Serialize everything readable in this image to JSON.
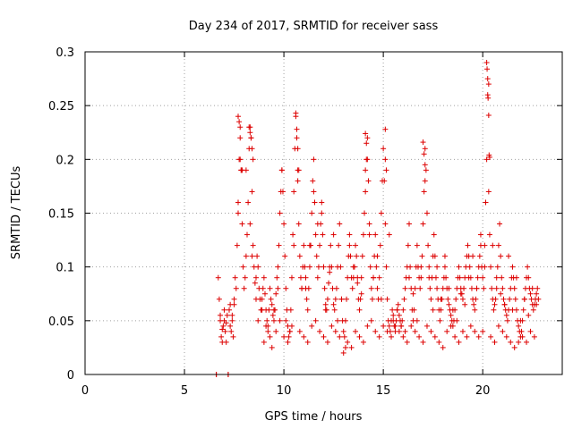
{
  "chart_data": {
    "type": "scatter",
    "title": "Day 234 of 2017, SRMTID for receiver sass",
    "xlabel": "GPS time / hours",
    "ylabel": "SRMTID / TECUs",
    "xlim": [
      0,
      24
    ],
    "ylim": [
      0,
      0.3
    ],
    "xticks": [
      0,
      5,
      10,
      15,
      20
    ],
    "xtick_labels": [
      "0",
      "5",
      "10",
      "15",
      "20"
    ],
    "yticks": [
      0,
      0.05,
      0.1,
      0.15,
      0.2,
      0.25,
      0.3
    ],
    "ytick_labels": [
      "0",
      "0.05",
      "0.1",
      "0.15",
      "0.2",
      "0.25",
      "0.3"
    ],
    "grid": true,
    "marker": "+",
    "color": "#dd0000",
    "series": [
      {
        "name": "SRMTID",
        "x": [
          6.6,
          6.6,
          6.6,
          7.2,
          7.2,
          6.7,
          6.75,
          6.8,
          6.85,
          6.9,
          6.95,
          7.0,
          7.05,
          7.1,
          7.15,
          7.25,
          7.3,
          7.35,
          7.4,
          7.45,
          7.5,
          7.55,
          7.6,
          7.65,
          7.7,
          7.75,
          7.8,
          7.85,
          7.9,
          7.95,
          8.0,
          8.05,
          8.1,
          8.15,
          8.2,
          8.25,
          8.3,
          8.35,
          8.4,
          8.45,
          8.5,
          8.55,
          8.6,
          8.65,
          8.7,
          8.75,
          8.8,
          8.85,
          8.9,
          8.95,
          9.0,
          9.05,
          9.1,
          9.15,
          9.2,
          9.25,
          9.3,
          9.35,
          9.4,
          9.45,
          9.5,
          9.55,
          9.6,
          9.65,
          9.7,
          9.75,
          9.8,
          9.85,
          9.9,
          9.95,
          10.0,
          10.05,
          10.1,
          10.15,
          10.2,
          10.25,
          10.3,
          10.35,
          10.4,
          10.45,
          10.5,
          10.55,
          10.6,
          10.65,
          10.7,
          10.75,
          10.8,
          10.85,
          10.9,
          10.95,
          11.0,
          11.05,
          11.1,
          11.15,
          11.2,
          11.25,
          11.3,
          11.35,
          11.4,
          11.45,
          11.5,
          11.55,
          11.6,
          11.65,
          11.7,
          11.75,
          11.8,
          11.85,
          11.9,
          11.95,
          12.0,
          12.05,
          12.1,
          12.15,
          12.2,
          12.25,
          12.3,
          12.35,
          12.4,
          12.45,
          12.5,
          12.55,
          12.6,
          12.65,
          12.7,
          12.75,
          12.8,
          12.85,
          12.9,
          12.95,
          13.0,
          13.05,
          13.1,
          13.15,
          13.2,
          13.25,
          13.3,
          13.35,
          13.4,
          13.45,
          13.5,
          13.55,
          13.6,
          13.65,
          13.7,
          13.75,
          13.8,
          13.85,
          13.9,
          13.95,
          14.0,
          14.05,
          14.1,
          14.15,
          14.2,
          14.25,
          14.3,
          14.35,
          14.4,
          14.45,
          14.5,
          14.55,
          14.6,
          14.65,
          14.7,
          14.75,
          14.8,
          14.85,
          14.9,
          14.95,
          15.0,
          15.05,
          15.1,
          15.15,
          15.2,
          15.25,
          15.3,
          15.35,
          15.4,
          15.45,
          15.5,
          15.55,
          15.6,
          15.65,
          15.7,
          15.75,
          15.8,
          15.85,
          15.9,
          15.95,
          16.0,
          16.05,
          16.1,
          16.15,
          16.2,
          16.25,
          16.3,
          16.35,
          16.4,
          16.45,
          16.5,
          16.55,
          16.6,
          16.65,
          16.7,
          16.75,
          16.8,
          16.85,
          16.9,
          16.95,
          17.0,
          17.05,
          17.1,
          17.15,
          17.2,
          17.25,
          17.3,
          17.35,
          17.4,
          17.45,
          17.5,
          17.55,
          17.6,
          17.65,
          17.7,
          17.75,
          17.8,
          17.85,
          17.9,
          17.95,
          18.0,
          18.05,
          18.1,
          18.15,
          18.2,
          18.25,
          18.3,
          18.35,
          18.4,
          18.45,
          18.5,
          18.55,
          18.6,
          18.65,
          18.7,
          18.75,
          18.8,
          18.85,
          18.9,
          18.95,
          19.0,
          19.05,
          19.1,
          19.15,
          19.2,
          19.25,
          19.3,
          19.35,
          19.4,
          19.45,
          19.5,
          19.55,
          19.6,
          19.65,
          19.7,
          19.75,
          19.8,
          19.85,
          19.9,
          19.95,
          20.0,
          20.05,
          20.1,
          20.15,
          20.2,
          20.25,
          20.3,
          20.35,
          20.4,
          20.45,
          20.5,
          20.55,
          20.6,
          20.65,
          20.7,
          20.75,
          20.8,
          20.85,
          20.9,
          20.95,
          21.0,
          21.05,
          21.1,
          21.15,
          21.2,
          21.25,
          21.3,
          21.35,
          21.4,
          21.45,
          21.5,
          21.55,
          21.6,
          21.65,
          21.7,
          21.75,
          21.8,
          21.85,
          21.9,
          21.95,
          22.0,
          22.05,
          22.1,
          22.15,
          22.2,
          22.25,
          22.3,
          22.35,
          22.4,
          22.45,
          22.5,
          22.55,
          22.6,
          22.65,
          22.7,
          22.75,
          22.8,
          6.8,
          6.9,
          7.0,
          7.1,
          7.3,
          7.4,
          7.5,
          7.7,
          7.8,
          7.9,
          8.1,
          8.3,
          8.4,
          8.6,
          8.7,
          8.9,
          9.1,
          9.3,
          9.5,
          9.7,
          9.9,
          10.1,
          10.3,
          10.5,
          10.7,
          10.9,
          11.1,
          11.3,
          11.5,
          11.7,
          11.9,
          12.1,
          12.3,
          12.5,
          12.7,
          12.9,
          13.1,
          13.3,
          13.5,
          13.7,
          13.9,
          14.1,
          14.3,
          14.5,
          14.7,
          14.9,
          15.1,
          15.3,
          15.5,
          15.7,
          15.9,
          16.1,
          16.3,
          16.5,
          16.7,
          16.9,
          17.1,
          17.3,
          17.5,
          17.7,
          17.9,
          18.1,
          18.3,
          18.5,
          18.7,
          18.9,
          19.1,
          19.3,
          19.5,
          19.7,
          19.9,
          20.1,
          20.3,
          20.5,
          20.7,
          20.9,
          21.1,
          21.3,
          21.5,
          21.7,
          21.9,
          22.1,
          22.3,
          22.5,
          22.7,
          7.7,
          7.75,
          7.8,
          7.85,
          8.25,
          8.3,
          8.35,
          8.4,
          8.45,
          10.6,
          10.65,
          10.7,
          10.75,
          14.1,
          14.15,
          14.2,
          15.1,
          15.15,
          17.0,
          17.05,
          17.1,
          20.2,
          20.22,
          20.25,
          20.27,
          20.3,
          20.32,
          20.35,
          9.0,
          9.2,
          9.4,
          9.6,
          9.8,
          10.0,
          10.2,
          10.4,
          10.8,
          11.0,
          11.2,
          11.4,
          11.6,
          11.8,
          12.0,
          12.2,
          12.4,
          12.6,
          12.8,
          13.0,
          13.2,
          13.4,
          13.6,
          13.8,
          14.0,
          14.2,
          14.4,
          14.6,
          14.8,
          15.0,
          15.2,
          15.4,
          15.6,
          15.8,
          16.0,
          16.2,
          16.4,
          16.6,
          16.8,
          17.0,
          17.2,
          17.4,
          17.6,
          17.8,
          18.0,
          18.2,
          18.4,
          18.6,
          18.8,
          19.0,
          19.2,
          19.4,
          19.6,
          19.8,
          20.0,
          20.4,
          20.6,
          20.8,
          21.0,
          21.2,
          21.4,
          21.6,
          21.8,
          22.0,
          22.2,
          22.4,
          22.6
        ],
        "y": [
          0.0,
          0.0,
          0.0,
          0.0,
          0.0,
          0.09,
          0.07,
          0.05,
          0.035,
          0.03,
          0.045,
          0.06,
          0.04,
          0.03,
          0.055,
          0.06,
          0.045,
          0.04,
          0.05,
          0.035,
          0.065,
          0.09,
          0.08,
          0.12,
          0.15,
          0.2,
          0.23,
          0.19,
          0.14,
          0.1,
          0.08,
          0.09,
          0.11,
          0.13,
          0.16,
          0.21,
          0.23,
          0.22,
          0.17,
          0.12,
          0.1,
          0.085,
          0.09,
          0.11,
          0.1,
          0.08,
          0.07,
          0.06,
          0.07,
          0.08,
          0.09,
          0.075,
          0.06,
          0.05,
          0.04,
          0.06,
          0.08,
          0.07,
          0.065,
          0.055,
          0.05,
          0.06,
          0.075,
          0.09,
          0.1,
          0.12,
          0.15,
          0.17,
          0.19,
          0.17,
          0.14,
          0.11,
          0.08,
          0.06,
          0.045,
          0.035,
          0.04,
          0.06,
          0.09,
          0.13,
          0.17,
          0.21,
          0.24,
          0.22,
          0.18,
          0.14,
          0.11,
          0.09,
          0.08,
          0.1,
          0.12,
          0.1,
          0.08,
          0.07,
          0.06,
          0.08,
          0.1,
          0.12,
          0.15,
          0.18,
          0.2,
          0.16,
          0.13,
          0.11,
          0.09,
          0.1,
          0.12,
          0.14,
          0.16,
          0.13,
          0.1,
          0.08,
          0.065,
          0.06,
          0.07,
          0.085,
          0.1,
          0.12,
          0.1,
          0.08,
          0.065,
          0.06,
          0.07,
          0.08,
          0.1,
          0.12,
          0.14,
          0.1,
          0.07,
          0.05,
          0.04,
          0.035,
          0.05,
          0.07,
          0.09,
          0.11,
          0.13,
          0.11,
          0.09,
          0.08,
          0.09,
          0.1,
          0.12,
          0.11,
          0.09,
          0.07,
          0.06,
          0.07,
          0.09,
          0.11,
          0.13,
          0.15,
          0.17,
          0.2,
          0.22,
          0.18,
          0.14,
          0.1,
          0.08,
          0.07,
          0.09,
          0.11,
          0.13,
          0.1,
          0.08,
          0.07,
          0.09,
          0.12,
          0.15,
          0.18,
          0.21,
          0.18,
          0.14,
          0.1,
          0.07,
          0.05,
          0.045,
          0.04,
          0.05,
          0.06,
          0.055,
          0.045,
          0.04,
          0.05,
          0.06,
          0.065,
          0.055,
          0.05,
          0.045,
          0.05,
          0.06,
          0.07,
          0.08,
          0.09,
          0.1,
          0.12,
          0.14,
          0.1,
          0.08,
          0.06,
          0.05,
          0.06,
          0.08,
          0.1,
          0.12,
          0.1,
          0.09,
          0.08,
          0.09,
          0.11,
          0.14,
          0.17,
          0.21,
          0.19,
          0.15,
          0.12,
          0.1,
          0.08,
          0.07,
          0.09,
          0.11,
          0.13,
          0.11,
          0.09,
          0.08,
          0.07,
          0.06,
          0.05,
          0.06,
          0.07,
          0.08,
          0.09,
          0.1,
          0.09,
          0.08,
          0.07,
          0.065,
          0.06,
          0.055,
          0.05,
          0.045,
          0.05,
          0.06,
          0.07,
          0.08,
          0.09,
          0.1,
          0.09,
          0.08,
          0.075,
          0.07,
          0.08,
          0.09,
          0.1,
          0.11,
          0.12,
          0.11,
          0.1,
          0.09,
          0.08,
          0.07,
          0.065,
          0.06,
          0.07,
          0.08,
          0.09,
          0.1,
          0.11,
          0.12,
          0.1,
          0.09,
          0.08,
          0.12,
          0.16,
          0.2,
          0.26,
          0.17,
          0.13,
          0.1,
          0.08,
          0.07,
          0.06,
          0.065,
          0.07,
          0.08,
          0.1,
          0.12,
          0.14,
          0.11,
          0.09,
          0.08,
          0.07,
          0.065,
          0.06,
          0.055,
          0.05,
          0.06,
          0.07,
          0.08,
          0.09,
          0.1,
          0.09,
          0.08,
          0.07,
          0.06,
          0.05,
          0.045,
          0.04,
          0.035,
          0.04,
          0.05,
          0.06,
          0.07,
          0.08,
          0.09,
          0.1,
          0.09,
          0.08,
          0.075,
          0.07,
          0.065,
          0.06,
          0.065,
          0.07,
          0.075,
          0.08,
          0.07,
          0.055,
          0.042,
          0.05,
          0.048,
          0.065,
          0.055,
          0.07,
          0.16,
          0.22,
          0.19,
          0.19,
          0.14,
          0.11,
          0.07,
          0.05,
          0.06,
          0.045,
          0.035,
          0.06,
          0.08,
          0.19,
          0.05,
          0.04,
          0.12,
          0.19,
          0.08,
          0.09,
          0.12,
          0.17,
          0.14,
          0.15,
          0.06,
          0.095,
          0.13,
          0.05,
          0.07,
          0.025,
          0.12,
          0.1,
          0.085,
          0.075,
          0.19,
          0.13,
          0.09,
          0.11,
          0.07,
          0.2,
          0.13,
          0.05,
          0.06,
          0.045,
          0.04,
          0.09,
          0.075,
          0.05,
          0.1,
          0.18,
          0.09,
          0.06,
          0.1,
          0.07,
          0.11,
          0.08,
          0.06,
          0.05,
          0.075,
          0.065,
          0.09,
          0.11,
          0.08,
          0.13,
          0.1,
          0.27,
          0.12,
          0.09,
          0.075,
          0.065,
          0.11,
          0.06,
          0.09,
          0.05,
          0.07,
          0.055,
          0.08,
          0.065,
          0.24,
          0.235,
          0.2,
          0.19,
          0.23,
          0.225,
          0.22,
          0.21,
          0.2,
          0.243,
          0.228,
          0.21,
          0.19,
          0.224,
          0.215,
          0.2,
          0.228,
          0.19,
          0.216,
          0.205,
          0.195,
          0.29,
          0.284,
          0.275,
          0.257,
          0.241,
          0.204,
          0.202,
          0.03,
          0.045,
          0.025,
          0.04,
          0.05,
          0.035,
          0.03,
          0.045,
          0.04,
          0.035,
          0.03,
          0.045,
          0.05,
          0.04,
          0.035,
          0.03,
          0.045,
          0.04,
          0.035,
          0.02,
          0.03,
          0.025,
          0.04,
          0.035,
          0.03,
          0.045,
          0.05,
          0.04,
          0.035,
          0.045,
          0.04,
          0.035,
          0.045,
          0.04,
          0.035,
          0.03,
          0.045,
          0.04,
          0.035,
          0.03,
          0.045,
          0.04,
          0.035,
          0.03,
          0.025,
          0.04,
          0.045,
          0.035,
          0.03,
          0.04,
          0.035,
          0.045,
          0.04,
          0.035,
          0.04,
          0.035,
          0.03,
          0.045,
          0.04,
          0.035,
          0.03,
          0.025,
          0.03,
          0.035,
          0.03,
          0.04,
          0.035
        ]
      }
    ]
  }
}
